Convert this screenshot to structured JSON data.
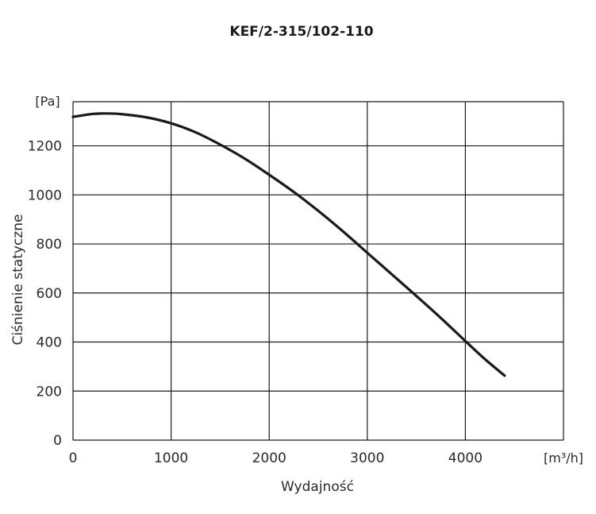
{
  "chart_data": {
    "type": "line",
    "title": "KEF/2-315/102-110",
    "xlabel": "Wydajność",
    "ylabel": "Ciśnienie statyczne",
    "x_unit": "[m³/h]",
    "y_unit": "[Pa]",
    "xlim": [
      0,
      5000
    ],
    "ylim": [
      0,
      1380
    ],
    "x_ticks": [
      0,
      1000,
      2000,
      3000,
      4000
    ],
    "y_ticks": [
      0,
      200,
      400,
      600,
      800,
      1000,
      1200
    ],
    "grid": true,
    "line_color": "#1a1a1a",
    "grid_color": "#1a1a1a",
    "series": [
      {
        "x": [
          0,
          200,
          350,
          500,
          750,
          1000,
          1250,
          1500,
          1750,
          2000,
          2250,
          2500,
          2750,
          3000,
          3250,
          3500,
          3750,
          4000,
          4200,
          4400
        ],
        "y": [
          1318,
          1330,
          1332,
          1329,
          1316,
          1292,
          1255,
          1205,
          1148,
          1082,
          1012,
          935,
          852,
          764,
          676,
          588,
          498,
          404,
          330,
          263
        ]
      }
    ]
  }
}
